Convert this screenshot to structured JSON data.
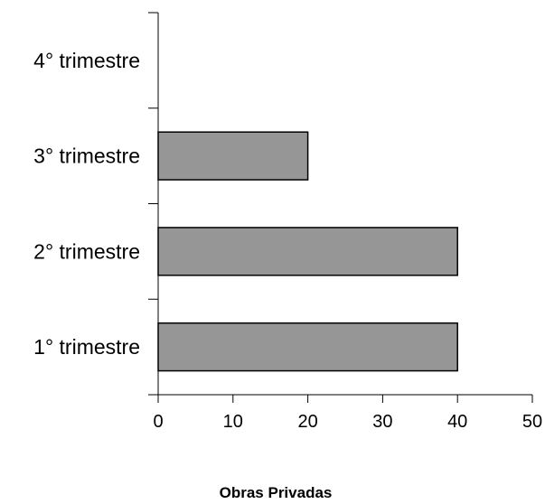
{
  "chart_data": {
    "type": "bar",
    "orientation": "horizontal",
    "categories": [
      "1° trimestre",
      "2° trimestre",
      "3° trimestre",
      "4° trimestre"
    ],
    "values": [
      40,
      40,
      20,
      0
    ],
    "xlabel": "Obras Privadas",
    "ylabel": "",
    "xlim": [
      0,
      50
    ],
    "x_ticks": [
      "0",
      "10",
      "20",
      "30",
      "40",
      "50"
    ],
    "bar_color": "#969696",
    "bar_stroke": "#000000",
    "grid": false,
    "legend": "none"
  }
}
